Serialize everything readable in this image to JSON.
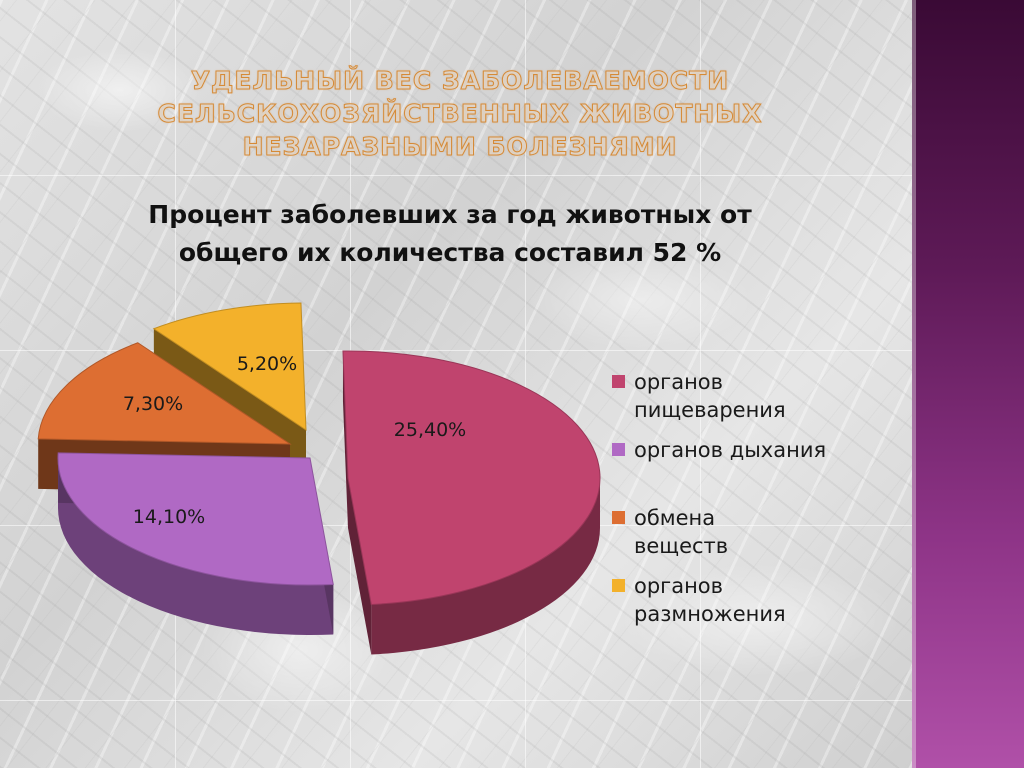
{
  "slide": {
    "title": "Удельный вес заболеваемости сельскохозяйственных животных незаразными болезнями",
    "subtitle": "Процент заболевших за год животных от общего их количества составил 52 %"
  },
  "colors": {
    "side_bar": "#6a2262",
    "title_outline": "#d68a36"
  },
  "chart_data": {
    "type": "pie",
    "style": "3d-exploded",
    "title": "",
    "legend_position": "right",
    "slices": [
      {
        "name": "органов пищеварения",
        "value": 25.4,
        "label": "25,40%",
        "color": "#c0446e"
      },
      {
        "name": "органов дыхания",
        "value": 14.1,
        "label": "14,10%",
        "color": "#b069c4"
      },
      {
        "name": "обмена веществ",
        "value": 7.3,
        "label": "7,30%",
        "color": "#dd6e32"
      },
      {
        "name": "органов размножения",
        "value": 5.2,
        "label": "5,20%",
        "color": "#f3b12b"
      }
    ]
  }
}
